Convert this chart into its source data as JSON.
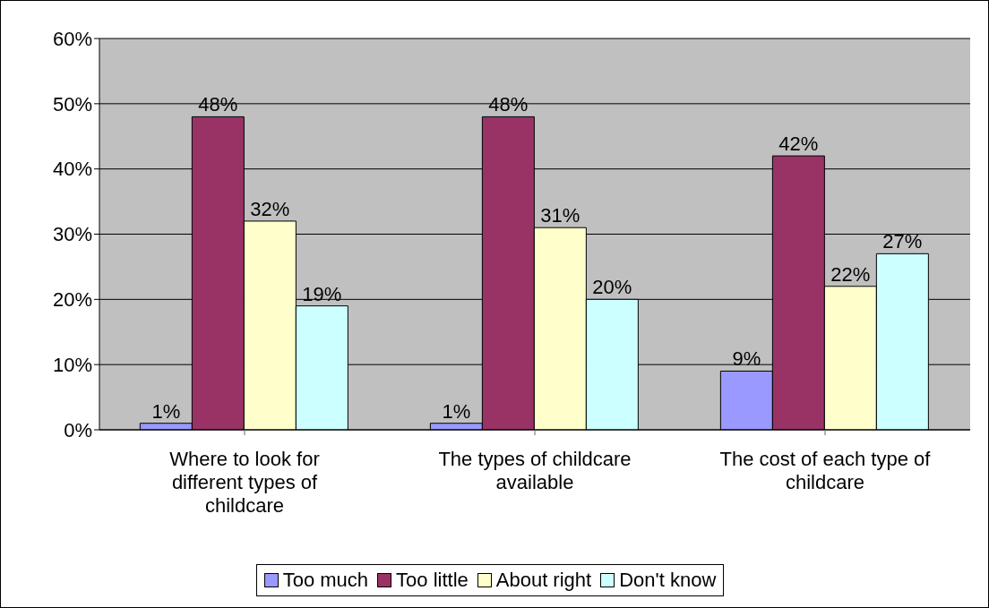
{
  "chart_data": {
    "type": "bar",
    "categories": [
      "Where to look for different types of childcare",
      "The types of childcare available",
      "The cost of each type of childcare"
    ],
    "series": [
      {
        "name": "Too much",
        "color": "#9999ff",
        "values": [
          1,
          1,
          9
        ],
        "value_labels": [
          "1%",
          "1%",
          "9%"
        ]
      },
      {
        "name": "Too little",
        "color": "#993366",
        "values": [
          48,
          48,
          42
        ],
        "value_labels": [
          "48%",
          "48%",
          "42%"
        ]
      },
      {
        "name": "About right",
        "color": "#ffffcc",
        "values": [
          32,
          31,
          22
        ],
        "value_labels": [
          "32%",
          "31%",
          "22%"
        ]
      },
      {
        "name": "Don't know",
        "color": "#ccffff",
        "values": [
          19,
          20,
          27
        ],
        "value_labels": [
          "19%",
          "20%",
          "27%"
        ]
      }
    ],
    "ylim": [
      0,
      60
    ],
    "yticks": [
      {
        "value": 0,
        "label": "0%"
      },
      {
        "value": 10,
        "label": "10%"
      },
      {
        "value": 20,
        "label": "20%"
      },
      {
        "value": 30,
        "label": "30%"
      },
      {
        "value": 40,
        "label": "40%"
      },
      {
        "value": 50,
        "label": "50%"
      },
      {
        "value": 60,
        "label": "60%"
      }
    ],
    "grid": "y",
    "legend": "bottom"
  }
}
